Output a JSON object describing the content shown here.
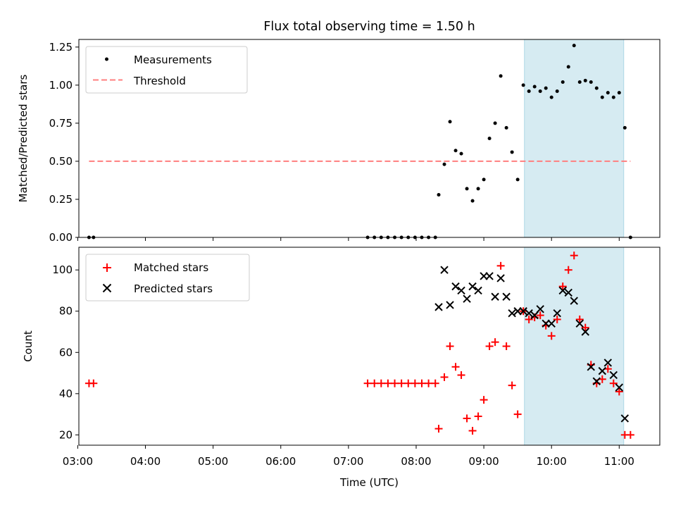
{
  "title": "Flux total observing time = 1.50 h",
  "colors": {
    "measurement": "#000000",
    "threshold": "#ff7f7f",
    "matched": "#ff0000",
    "predicted": "#000000",
    "highlight": "#add8e6"
  },
  "x_axis": {
    "label": "Time (UTC)",
    "xlim": [
      "03:01",
      "11:36"
    ],
    "ticks": [
      "03:00",
      "04:00",
      "05:00",
      "06:00",
      "07:00",
      "08:00",
      "09:00",
      "10:00",
      "11:00"
    ]
  },
  "highlight_span": [
    "09:36",
    "11:04"
  ],
  "chart_data": [
    {
      "type": "scatter",
      "ylabel": "Matched/Predicted stars",
      "ylim": [
        0,
        1.3
      ],
      "yticks": [
        "0.00",
        "0.25",
        "0.50",
        "0.75",
        "1.00",
        "1.25"
      ],
      "legend": {
        "position": "top-left",
        "measurements": "Measurements",
        "threshold": "Threshold"
      },
      "threshold": {
        "value": 0.5,
        "x": [
          "03:10",
          "11:10"
        ]
      },
      "series": [
        {
          "name": "Measurements",
          "points": [
            [
              "03:10",
              0
            ],
            [
              "03:14",
              0
            ],
            [
              "07:17",
              0
            ],
            [
              "07:23",
              0
            ],
            [
              "07:29",
              0
            ],
            [
              "07:35",
              0
            ],
            [
              "07:41",
              0
            ],
            [
              "07:47",
              0
            ],
            [
              "07:53",
              0
            ],
            [
              "07:59",
              0
            ],
            [
              "08:05",
              0
            ],
            [
              "08:11",
              0
            ],
            [
              "08:17",
              0
            ],
            [
              "08:20",
              0.28
            ],
            [
              "08:25",
              0.48
            ],
            [
              "08:30",
              0.76
            ],
            [
              "08:35",
              0.57
            ],
            [
              "08:40",
              0.55
            ],
            [
              "08:45",
              0.32
            ],
            [
              "08:50",
              0.24
            ],
            [
              "08:55",
              0.32
            ],
            [
              "09:00",
              0.38
            ],
            [
              "09:05",
              0.65
            ],
            [
              "09:10",
              0.75
            ],
            [
              "09:15",
              1.06
            ],
            [
              "09:20",
              0.72
            ],
            [
              "09:25",
              0.56
            ],
            [
              "09:30",
              0.38
            ],
            [
              "09:35",
              1.0
            ],
            [
              "09:40",
              0.96
            ],
            [
              "09:45",
              0.99
            ],
            [
              "09:50",
              0.96
            ],
            [
              "09:55",
              0.98
            ],
            [
              "10:00",
              0.92
            ],
            [
              "10:05",
              0.96
            ],
            [
              "10:10",
              1.02
            ],
            [
              "10:15",
              1.12
            ],
            [
              "10:20",
              1.26
            ],
            [
              "10:25",
              1.02
            ],
            [
              "10:30",
              1.03
            ],
            [
              "10:35",
              1.02
            ],
            [
              "10:40",
              0.98
            ],
            [
              "10:45",
              0.92
            ],
            [
              "10:50",
              0.95
            ],
            [
              "10:55",
              0.92
            ],
            [
              "11:00",
              0.95
            ],
            [
              "11:05",
              0.72
            ],
            [
              "11:10",
              0
            ]
          ]
        }
      ]
    },
    {
      "type": "scatter",
      "ylabel": "Count",
      "ylim": [
        15,
        111
      ],
      "yticks": [
        "20",
        "40",
        "60",
        "80",
        "100"
      ],
      "legend": {
        "position": "top-left",
        "matched": "Matched stars",
        "predicted": "Predicted stars"
      },
      "series": [
        {
          "name": "Matched stars",
          "points": [
            [
              "03:10",
              45
            ],
            [
              "03:14",
              45
            ],
            [
              "07:17",
              45
            ],
            [
              "07:23",
              45
            ],
            [
              "07:29",
              45
            ],
            [
              "07:35",
              45
            ],
            [
              "07:41",
              45
            ],
            [
              "07:47",
              45
            ],
            [
              "07:53",
              45
            ],
            [
              "07:59",
              45
            ],
            [
              "08:05",
              45
            ],
            [
              "08:11",
              45
            ],
            [
              "08:17",
              45
            ],
            [
              "08:20",
              23
            ],
            [
              "08:25",
              48
            ],
            [
              "08:30",
              63
            ],
            [
              "08:35",
              53
            ],
            [
              "08:40",
              49
            ],
            [
              "08:45",
              28
            ],
            [
              "08:50",
              22
            ],
            [
              "08:55",
              29
            ],
            [
              "09:00",
              37
            ],
            [
              "09:05",
              63
            ],
            [
              "09:10",
              65
            ],
            [
              "09:15",
              102
            ],
            [
              "09:20",
              63
            ],
            [
              "09:25",
              44
            ],
            [
              "09:30",
              30
            ],
            [
              "09:35",
              80
            ],
            [
              "09:40",
              76
            ],
            [
              "09:45",
              77
            ],
            [
              "09:50",
              78
            ],
            [
              "09:55",
              73
            ],
            [
              "10:00",
              68
            ],
            [
              "10:05",
              76
            ],
            [
              "10:10",
              92
            ],
            [
              "10:15",
              100
            ],
            [
              "10:20",
              107
            ],
            [
              "10:25",
              76
            ],
            [
              "10:30",
              72
            ],
            [
              "10:35",
              54
            ],
            [
              "10:40",
              45
            ],
            [
              "10:45",
              47
            ],
            [
              "10:50",
              52
            ],
            [
              "10:55",
              45
            ],
            [
              "11:00",
              41
            ],
            [
              "11:05",
              20
            ],
            [
              "11:10",
              20
            ]
          ]
        },
        {
          "name": "Predicted stars",
          "points": [
            [
              "08:20",
              82
            ],
            [
              "08:25",
              100
            ],
            [
              "08:30",
              83
            ],
            [
              "08:35",
              92
            ],
            [
              "08:40",
              90
            ],
            [
              "08:45",
              86
            ],
            [
              "08:50",
              92
            ],
            [
              "08:55",
              90
            ],
            [
              "09:00",
              97
            ],
            [
              "09:05",
              97
            ],
            [
              "09:10",
              87
            ],
            [
              "09:15",
              96
            ],
            [
              "09:20",
              87
            ],
            [
              "09:25",
              79
            ],
            [
              "09:30",
              80
            ],
            [
              "09:35",
              80
            ],
            [
              "09:40",
              79
            ],
            [
              "09:45",
              78
            ],
            [
              "09:50",
              81
            ],
            [
              "09:55",
              74
            ],
            [
              "10:00",
              74
            ],
            [
              "10:05",
              79
            ],
            [
              "10:10",
              90
            ],
            [
              "10:15",
              89
            ],
            [
              "10:20",
              85
            ],
            [
              "10:25",
              74
            ],
            [
              "10:30",
              70
            ],
            [
              "10:35",
              53
            ],
            [
              "10:40",
              46
            ],
            [
              "10:45",
              51
            ],
            [
              "10:50",
              55
            ],
            [
              "10:55",
              49
            ],
            [
              "11:00",
              43
            ],
            [
              "11:05",
              28
            ]
          ]
        }
      ]
    }
  ]
}
